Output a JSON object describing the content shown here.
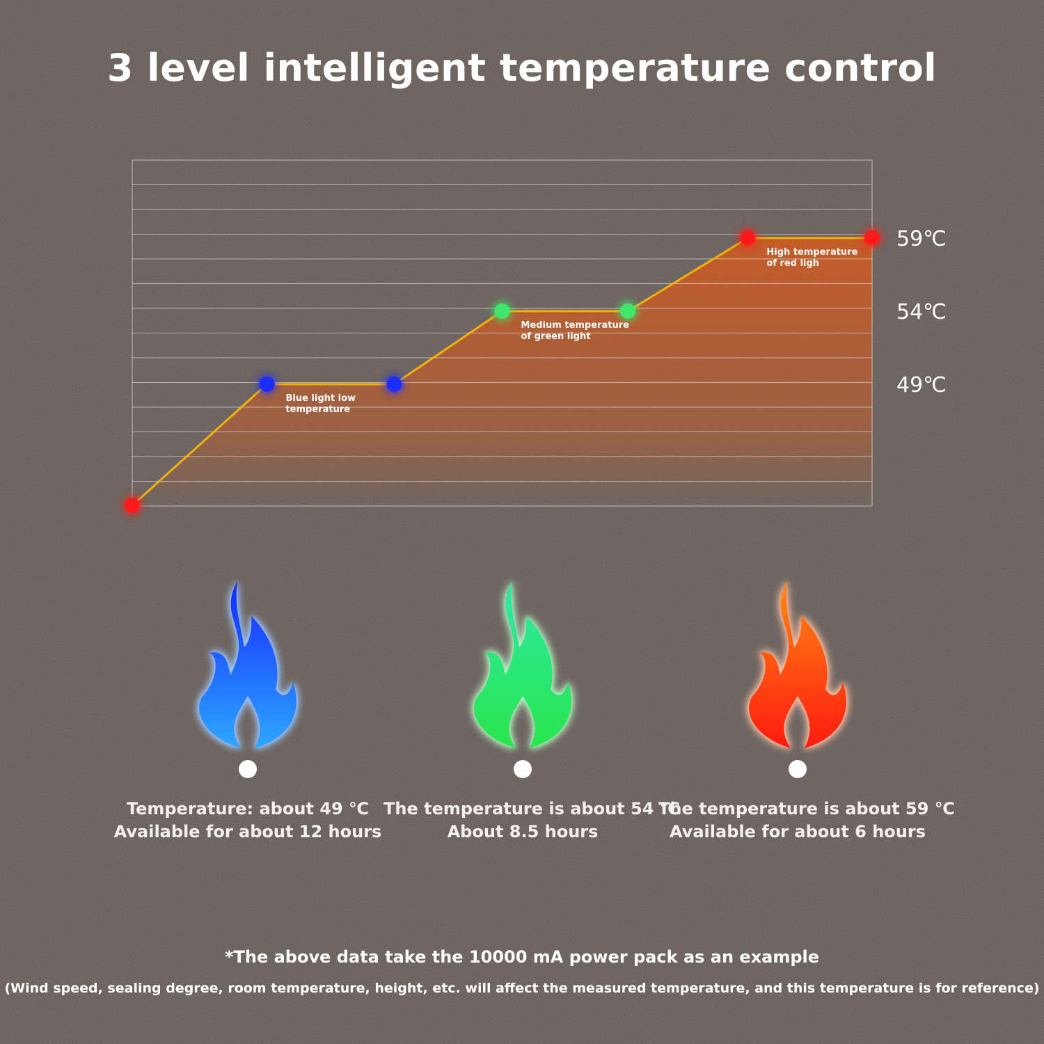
{
  "title": "3 level intelligent temperature control",
  "chart_data": {
    "type": "line",
    "title": "3 level intelligent temperature control",
    "ylim": [
      0,
      59
    ],
    "grid": true,
    "y_tick_labels": [
      {
        "value": 59,
        "label": "59℃"
      },
      {
        "value": 54,
        "label": "54℃"
      },
      {
        "value": 49,
        "label": "49℃"
      }
    ],
    "points": [
      {
        "x": 0,
        "y": 40.7,
        "color": "#ff1a1a"
      },
      {
        "x": 1.82,
        "y": 49,
        "color": "#1a2cff"
      },
      {
        "x": 3.54,
        "y": 49,
        "color": "#1a2cff"
      },
      {
        "x": 5.0,
        "y": 54,
        "color": "#3fe86a"
      },
      {
        "x": 6.7,
        "y": 54,
        "color": "#3fe86a"
      },
      {
        "x": 8.32,
        "y": 59,
        "color": "#ff1a1a"
      },
      {
        "x": 10.0,
        "y": 59,
        "color": "#ff1a1a"
      }
    ],
    "annotations": [
      {
        "text": [
          "Blue light low",
          "temperature"
        ],
        "x": 1.82,
        "y": 49
      },
      {
        "text": [
          "Medium temperature",
          "of green light"
        ],
        "x": 5.0,
        "y": 54
      },
      {
        "text": [
          "High temperature",
          "of red ligh"
        ],
        "x": 8.32,
        "y": 59
      }
    ],
    "line_color": "#f2b20a",
    "fill_color": "#d45a1e"
  },
  "levels": [
    {
      "color_name": "blue",
      "line1": "Temperature: about 49 ℃",
      "line2": "Available for about 12 hours",
      "grad_top": "#1428ff",
      "grad_bottom": "#2ea8ff",
      "glow": "#9fc8ff"
    },
    {
      "color_name": "green",
      "line1": "The temperature is about 54 ℃",
      "line2": "About 8.5 hours",
      "grad_top": "#2ee8a8",
      "grad_bottom": "#28e64a",
      "glow": "#b6f5c4"
    },
    {
      "color_name": "red",
      "line1": "The temperature is about 59 ℃",
      "line2": "Available for about 6 hours",
      "grad_top": "#ff8a14",
      "grad_bottom": "#ff1a10",
      "glow": "#ffc2a6"
    }
  ],
  "footnote": "*The above data take the 10000 mA power pack as an example",
  "disclaimer": "(Wind speed, sealing degree, room temperature, height, etc. will affect the measured temperature, and this temperature is for reference)"
}
